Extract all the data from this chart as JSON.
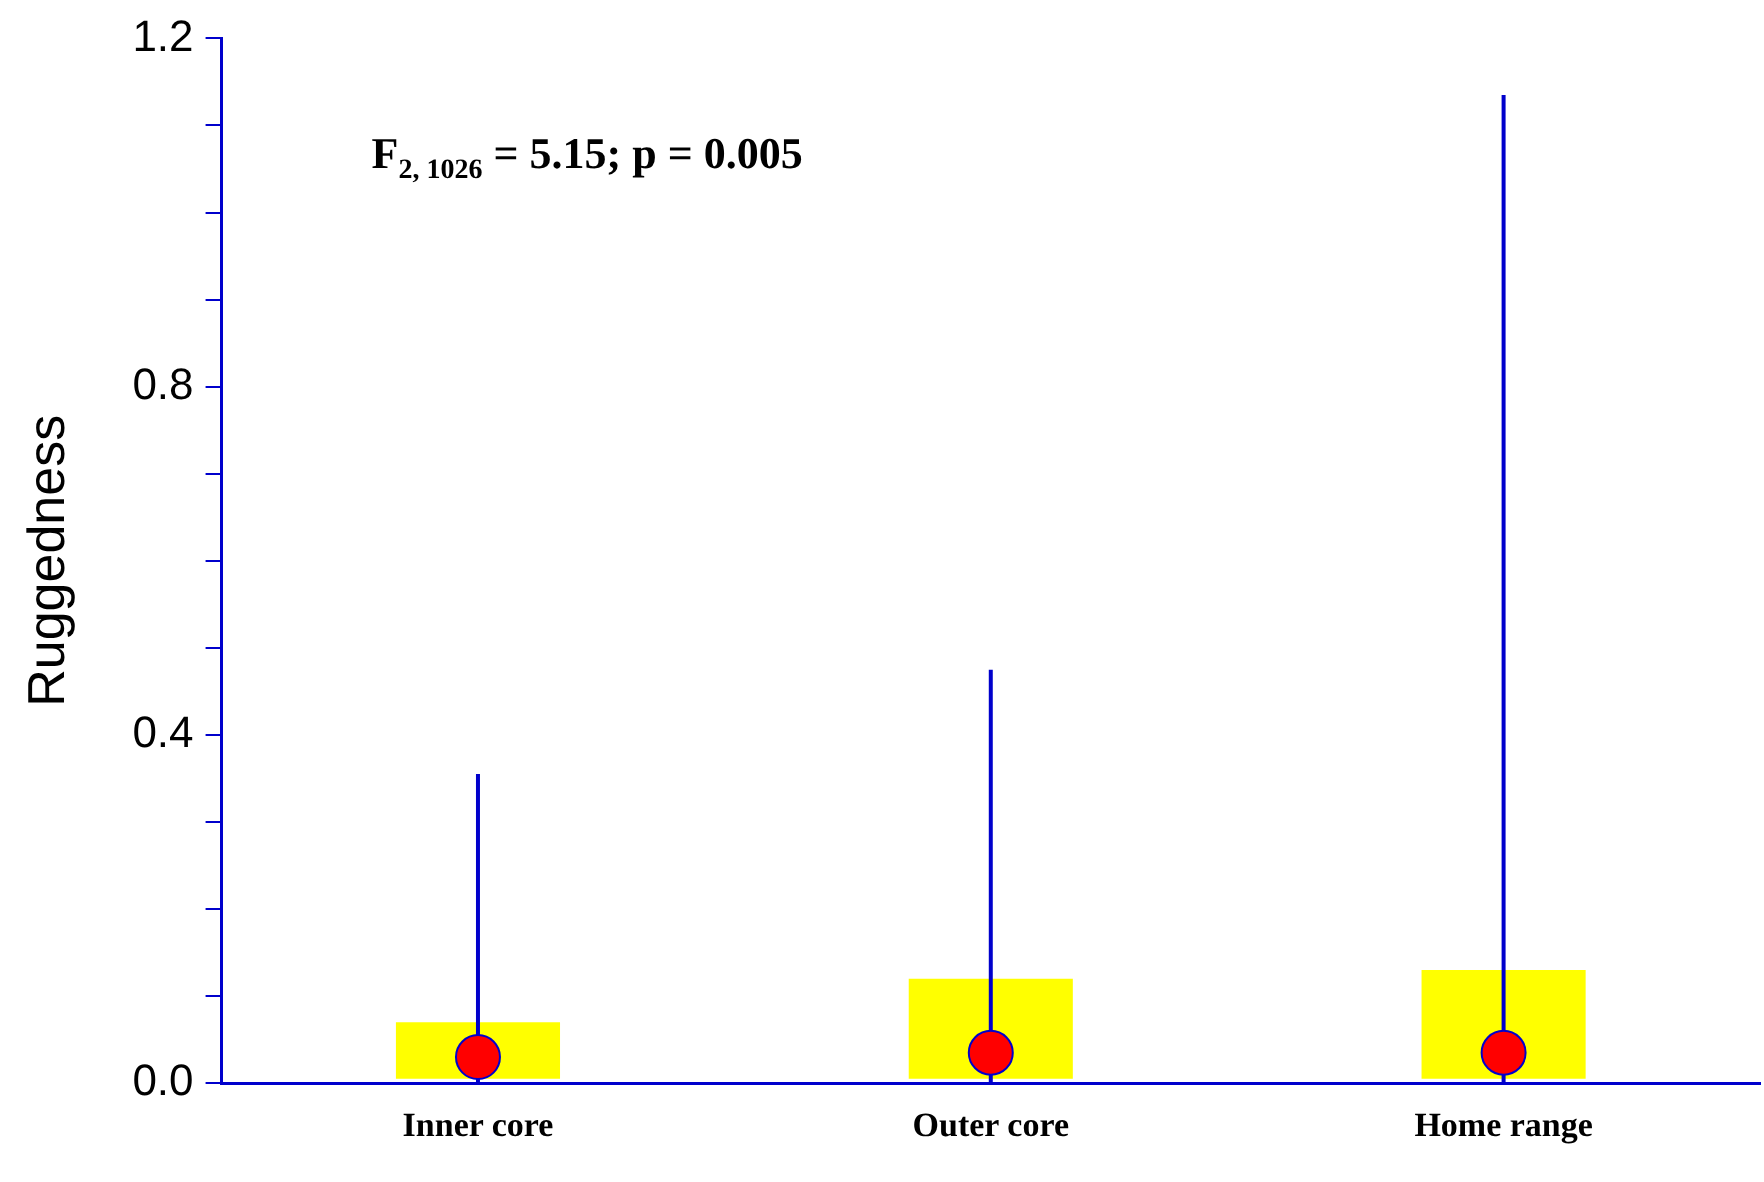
{
  "chart_data": {
    "type": "box",
    "ylabel": "Ruggedness",
    "categories": [
      "Inner core",
      "Outer core",
      "Home range"
    ],
    "boxes": [
      {
        "low": 0,
        "q1": 0.005,
        "median": 0.03,
        "q3": 0.07,
        "high": 0.355
      },
      {
        "low": 0,
        "q1": 0.005,
        "median": 0.035,
        "q3": 0.12,
        "high": 0.475
      },
      {
        "low": 0,
        "q1": 0.005,
        "median": 0.035,
        "q3": 0.13,
        "high": 1.135
      }
    ],
    "color": "#ffff00",
    "ylim": [
      0,
      1.2
    ],
    "yticks": [
      {
        "value": 0,
        "label": "0.0"
      },
      {
        "value": 0.1,
        "label": null
      },
      {
        "value": 0.2,
        "label": null
      },
      {
        "value": 0.3,
        "label": null
      },
      0.4,
      {
        "value": 0.5,
        "label": null
      },
      {
        "value": 0.6,
        "label": null
      },
      {
        "value": 0.7,
        "label": null
      },
      0.8,
      {
        "value": 0.9,
        "label": null
      },
      {
        "value": 1.0,
        "label": null
      },
      {
        "value": 1.1,
        "label": null
      },
      {
        "value": 1.2,
        "label": "1.2"
      }
    ],
    "grid": false,
    "legend": false,
    "annotations": [
      "F$_{2, 1026}$ = 5.15; p = 0.005"
    ]
  }
}
